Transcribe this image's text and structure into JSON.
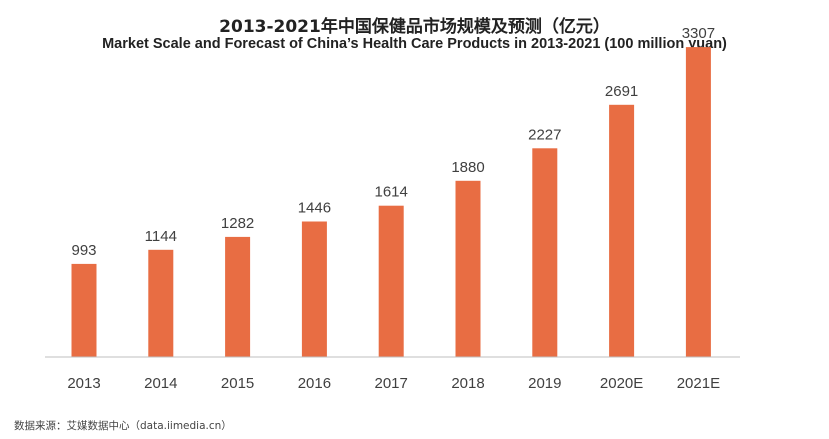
{
  "title_cn": "2013-2021年中国保健品市场规模及预测（亿元）",
  "title_en": "Market Scale and Forecast of China’s Health Care Products in 2013-2021 (100 million yuan)",
  "source": "数据来源：艾媒数据中心（data.iimedia.cn）",
  "colors": {
    "bar": "#E86D43",
    "axis": "#BFBFBF",
    "label": "#404040"
  },
  "chart_data": {
    "type": "bar",
    "title": "2013-2021年中国保健品市场规模及预测（亿元）",
    "subtitle": "Market Scale and Forecast of China’s Health Care Products in 2013-2021 (100 million yuan)",
    "categories": [
      "2013",
      "2014",
      "2015",
      "2016",
      "2017",
      "2018",
      "2019",
      "2020E",
      "2021E"
    ],
    "values": [
      993,
      1144,
      1282,
      1446,
      1614,
      1880,
      2227,
      2691,
      3307
    ],
    "data_labels": [
      "993",
      "1144",
      "1282",
      "1446",
      "1614",
      "1880",
      "2227",
      "2691",
      "3307"
    ],
    "xlabel": "",
    "ylabel": "",
    "ylim": [
      0,
      3500
    ],
    "grid": false,
    "legend": "none"
  }
}
